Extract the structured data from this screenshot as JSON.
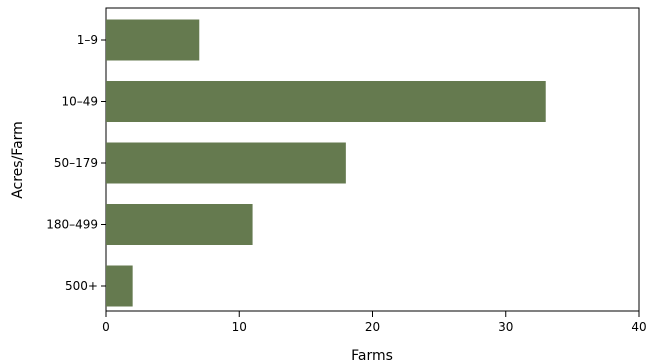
{
  "chart_data": {
    "type": "bar",
    "orientation": "horizontal",
    "categories": [
      "1–9",
      "10–49",
      "50–179",
      "180–499",
      "500+"
    ],
    "values": [
      7,
      33,
      18,
      11,
      2
    ],
    "xlabel": "Farms",
    "ylabel": "Acres/Farm",
    "xlim": [
      0,
      40
    ],
    "xticks": [
      0,
      10,
      20,
      30,
      40
    ],
    "grid": false,
    "bar_color": "#657a4f"
  }
}
